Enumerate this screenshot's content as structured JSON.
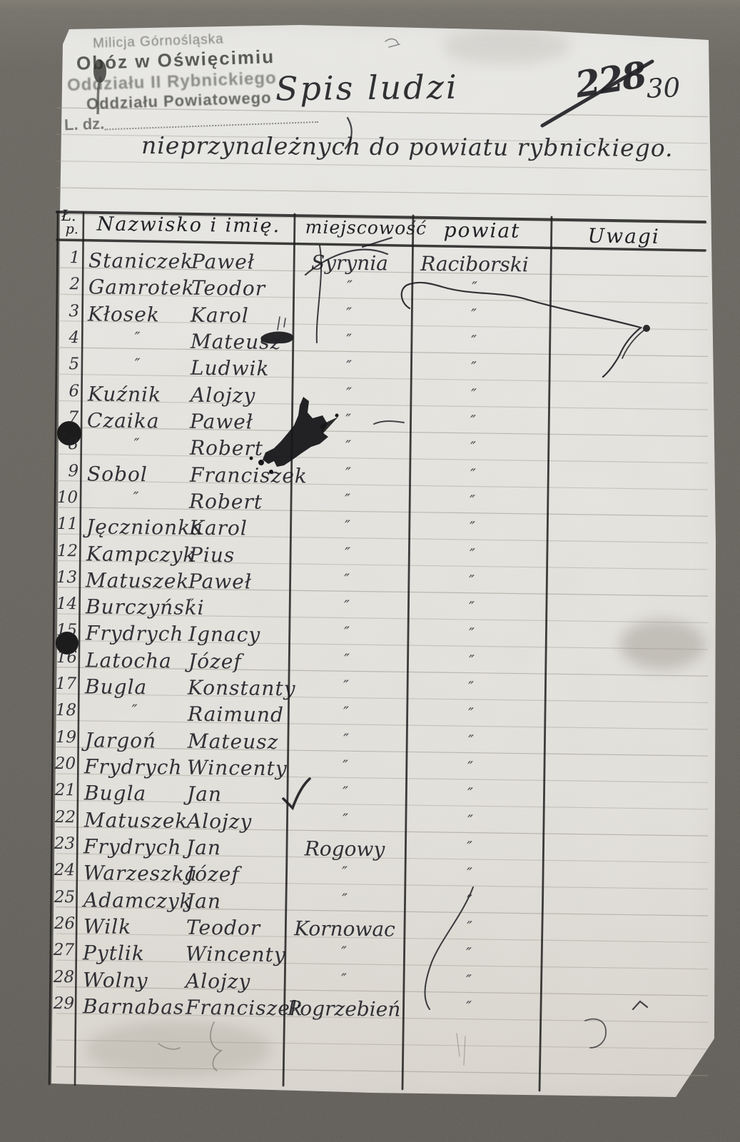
{
  "photo": {
    "background_color": "#595650",
    "paper_color": "#eae9e5",
    "ink_color": "#222226"
  },
  "stamp": {
    "line1": "Milicja Górnośląska",
    "line2": "Obóz w Oświęcimiu",
    "line3": "Oddziału II Rybnickiego",
    "line4": "Oddziału Powiatowego",
    "line5": "L. dz."
  },
  "header": {
    "title_line1": "Spis ludzi",
    "title_line2": "nieprzynależnych do powiatu rybnickiego.",
    "old_number_crossed_out": "228",
    "new_number": "30"
  },
  "table": {
    "columns": [
      "Ł.",
      "p.",
      "Nazwisko i imię.",
      "miejscowość",
      "powiat",
      "Uwagi"
    ],
    "ditto_mark": "″",
    "rows": [
      {
        "no": "1",
        "surname": "Staniczek",
        "given": "Paweł",
        "place": "Syrynia",
        "district": "Raciborski",
        "remarks": ""
      },
      {
        "no": "2",
        "surname": "Gamrotek",
        "given": "Teodor",
        "place": "″",
        "district": "″",
        "remarks": ""
      },
      {
        "no": "3",
        "surname": "Kłosek",
        "given": "Karol",
        "place": "″",
        "district": "″",
        "remarks": ""
      },
      {
        "no": "4",
        "surname": "″",
        "given": "Mateusz",
        "place": "″",
        "district": "″",
        "remarks": ""
      },
      {
        "no": "5",
        "surname": "″",
        "given": "Ludwik",
        "place": "″",
        "district": "″",
        "remarks": ""
      },
      {
        "no": "6",
        "surname": "Kuźnik",
        "given": "Alojzy",
        "place": "″",
        "district": "″",
        "remarks": ""
      },
      {
        "no": "7",
        "surname": "Czaika",
        "given": "Paweł",
        "place": "″",
        "district": "″",
        "remarks": ""
      },
      {
        "no": "8",
        "surname": "″",
        "given": "Robert",
        "place": "″",
        "district": "″",
        "remarks": ""
      },
      {
        "no": "9",
        "surname": "Sobol",
        "given": "Franciszek",
        "place": "″",
        "district": "″",
        "remarks": ""
      },
      {
        "no": "10",
        "surname": "″",
        "given": "Robert",
        "place": "″",
        "district": "″",
        "remarks": ""
      },
      {
        "no": "11",
        "surname": "Jęcznionka",
        "given": "Karol",
        "place": "″",
        "district": "″",
        "remarks": ""
      },
      {
        "no": "12",
        "surname": "Kampczyk",
        "given": "Pius",
        "place": "″",
        "district": "″",
        "remarks": ""
      },
      {
        "no": "13",
        "surname": "Matuszek",
        "given": "Paweł",
        "place": "″",
        "district": "″",
        "remarks": ""
      },
      {
        "no": "14",
        "surname": "Burczyński",
        "given": "″",
        "place": "″",
        "district": "″",
        "remarks": ""
      },
      {
        "no": "15",
        "surname": "Frydrych",
        "given": "Ignacy",
        "place": "″",
        "district": "″",
        "remarks": ""
      },
      {
        "no": "16",
        "surname": "Latocha",
        "given": "Józef",
        "place": "″",
        "district": "″",
        "remarks": ""
      },
      {
        "no": "17",
        "surname": "Bugla",
        "given": "Konstanty",
        "place": "″",
        "district": "″",
        "remarks": ""
      },
      {
        "no": "18",
        "surname": "″",
        "given": "Raimund",
        "place": "″",
        "district": "″",
        "remarks": ""
      },
      {
        "no": "19",
        "surname": "Jargoń",
        "given": "Mateusz",
        "place": "″",
        "district": "″",
        "remarks": ""
      },
      {
        "no": "20",
        "surname": "Frydrych",
        "given": "Wincenty",
        "place": "″",
        "district": "″",
        "remarks": ""
      },
      {
        "no": "21",
        "surname": "Bugla",
        "given": "Jan",
        "place": "″",
        "district": "″",
        "remarks": ""
      },
      {
        "no": "22",
        "surname": "Matuszek",
        "given": "Alojzy",
        "place": "″",
        "district": "″",
        "remarks": ""
      },
      {
        "no": "23",
        "surname": "Frydrych",
        "given": "Jan",
        "place": "Rogowy",
        "district": "″",
        "remarks": ""
      },
      {
        "no": "24",
        "surname": "Warzeszka",
        "given": "Józef",
        "place": "″",
        "district": "″",
        "remarks": ""
      },
      {
        "no": "25",
        "surname": "Adamczyk",
        "given": "Jan",
        "place": "″",
        "district": "″",
        "remarks": ""
      },
      {
        "no": "26",
        "surname": "Wilk",
        "given": "Teodor",
        "place": "Kornowac",
        "district": "″",
        "remarks": ""
      },
      {
        "no": "27",
        "surname": "Pytlik",
        "given": "Wincenty",
        "place": "″",
        "district": "″",
        "remarks": ""
      },
      {
        "no": "28",
        "surname": "Wolny",
        "given": "Alojzy",
        "place": "″",
        "district": "″",
        "remarks": ""
      },
      {
        "no": "29",
        "surname": "Barnabas",
        "given": "Franciszek",
        "place": "Pogrzebień",
        "district": "″",
        "remarks": ""
      }
    ]
  }
}
